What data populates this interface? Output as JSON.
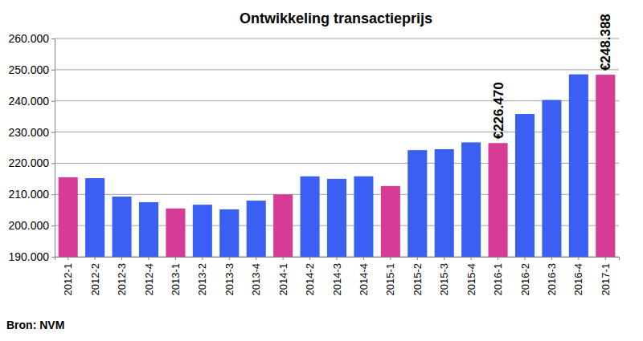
{
  "chart_data": {
    "type": "bar",
    "title": "Ontwikkeling transactieprijs",
    "source": "Bron: NVM",
    "categories": [
      "2012-1",
      "2012-2",
      "2012-3",
      "2012-4",
      "2013-1",
      "2013-2",
      "2013-3",
      "2013-4",
      "2014-1",
      "2014-2",
      "2014-3",
      "2014-4",
      "2015-1",
      "2015-2",
      "2015-3",
      "2015-4",
      "2016-1",
      "2016-2",
      "2016-3",
      "2016-4",
      "2017-1"
    ],
    "values": [
      215500,
      215200,
      209300,
      207500,
      205500,
      206700,
      205200,
      208000,
      210000,
      215800,
      215000,
      215800,
      212700,
      224200,
      224500,
      226700,
      226470,
      235800,
      240300,
      248500,
      248388
    ],
    "value_labels": [
      null,
      null,
      null,
      null,
      null,
      null,
      null,
      null,
      null,
      null,
      null,
      null,
      null,
      null,
      null,
      null,
      "€226.470",
      null,
      null,
      null,
      "€248.388"
    ],
    "data_labels": true,
    "colors": [
      "#d63c96",
      "#3a5ff2",
      "#3a5ff2",
      "#3a5ff2",
      "#d63c96",
      "#3a5ff2",
      "#3a5ff2",
      "#3a5ff2",
      "#d63c96",
      "#3a5ff2",
      "#3a5ff2",
      "#3a5ff2",
      "#d63c96",
      "#3a5ff2",
      "#3a5ff2",
      "#3a5ff2",
      "#d63c96",
      "#3a5ff2",
      "#3a5ff2",
      "#3a5ff2",
      "#d63c96"
    ],
    "ylim": [
      190000,
      260000
    ],
    "yticks": [
      {
        "value": 190000,
        "label": "190.000"
      },
      {
        "value": 200000,
        "label": "200.000"
      },
      {
        "value": 210000,
        "label": "210.000"
      },
      {
        "value": 220000,
        "label": "220.000"
      },
      {
        "value": 230000,
        "label": "230.000"
      },
      {
        "value": 240000,
        "label": "240.000"
      },
      {
        "value": 250000,
        "label": "250.000"
      },
      {
        "value": 260000,
        "label": "260.000"
      }
    ],
    "grid": true
  }
}
